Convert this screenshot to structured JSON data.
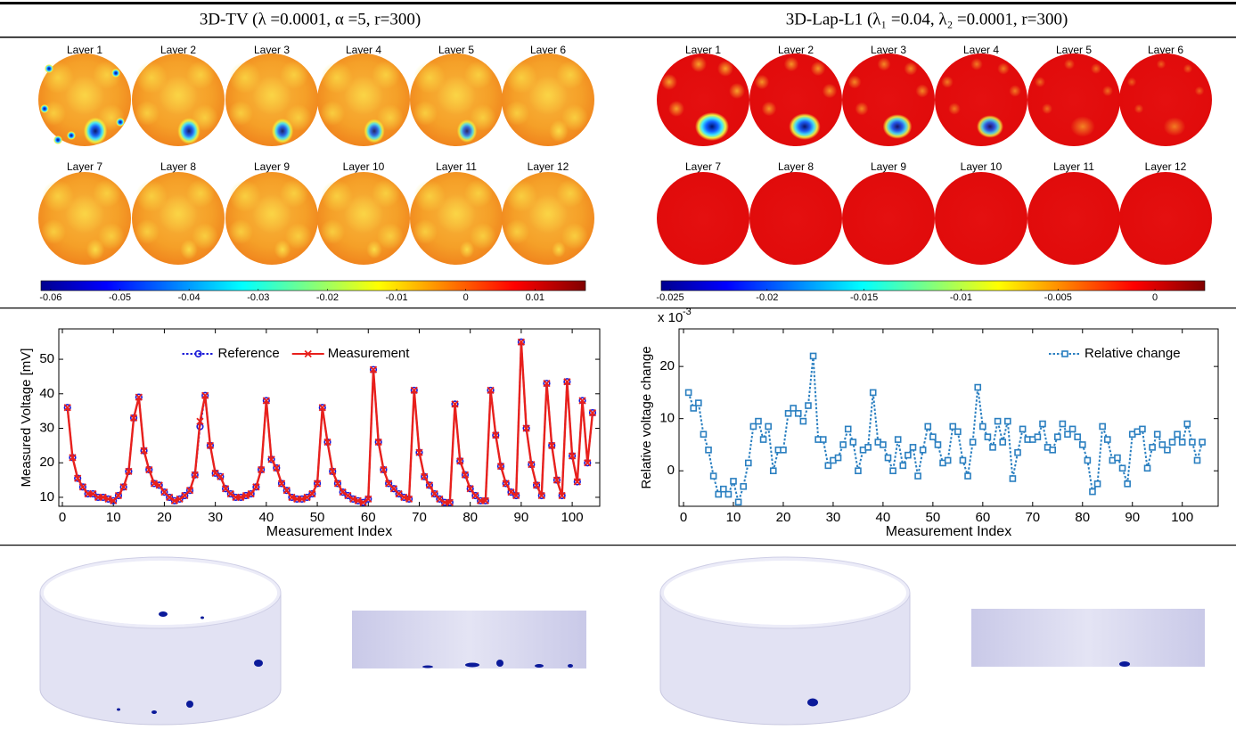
{
  "header": {
    "left": "3D-TV (λ =0.0001, α =5, r=300)",
    "right": "3D-Lap-L1 (λ₁ =0.04, λ₂ =0.0001, r=300)"
  },
  "layer_labels": [
    "Layer 1",
    "Layer 2",
    "Layer 3",
    "Layer 4",
    "Layer 5",
    "Layer 6",
    "Layer 7",
    "Layer 8",
    "Layer 9",
    "Layer 10",
    "Layer 11",
    "Layer 12"
  ],
  "colorbars": [
    {
      "xlim": [
        -0.0614,
        0.0173
      ],
      "ticks": [
        -0.06,
        -0.05,
        -0.04,
        -0.03,
        -0.02,
        -0.01,
        0,
        0.01
      ]
    },
    {
      "xlim": [
        -0.02546,
        0.00257
      ],
      "ticks": [
        -0.025,
        -0.02,
        -0.015,
        -0.01,
        -0.005,
        0
      ]
    }
  ],
  "chart_data": [
    {
      "type": "line",
      "xlabel": "Measurement Index",
      "ylabel": "Measured Voltage [mV]",
      "xlim": [
        -0.7,
        105.4
      ],
      "ylim": [
        7.4,
        58.8
      ],
      "xticks": [
        0,
        10,
        20,
        30,
        40,
        50,
        60,
        70,
        80,
        90,
        100
      ],
      "yticks": [
        10,
        20,
        30,
        40,
        50
      ],
      "legend": "upper center",
      "x": [
        1,
        2,
        3,
        4,
        5,
        6,
        7,
        8,
        9,
        10,
        11,
        12,
        13,
        14,
        15,
        16,
        17,
        18,
        19,
        20,
        21,
        22,
        23,
        24,
        25,
        26,
        27,
        28,
        29,
        30,
        31,
        32,
        33,
        34,
        35,
        36,
        37,
        38,
        39,
        40,
        41,
        42,
        43,
        44,
        45,
        46,
        47,
        48,
        49,
        50,
        51,
        52,
        53,
        54,
        55,
        56,
        57,
        58,
        59,
        60,
        61,
        62,
        63,
        64,
        65,
        66,
        67,
        68,
        69,
        70,
        71,
        72,
        73,
        74,
        75,
        76,
        77,
        78,
        79,
        80,
        81,
        82,
        83,
        84,
        85,
        86,
        87,
        88,
        89,
        90,
        91,
        92,
        93,
        94,
        95,
        96,
        97,
        98,
        99,
        100,
        101,
        102,
        103,
        104
      ],
      "series": [
        {
          "name": "Reference",
          "color": "#1c1cd8",
          "marker": "circle",
          "dashed": true,
          "values": [
            36,
            21.5,
            15.5,
            13,
            11,
            11,
            10,
            10,
            9.5,
            9,
            10.5,
            13,
            17.5,
            33,
            39,
            23.5,
            18,
            14,
            13.5,
            11.5,
            10,
            9,
            9.5,
            10.5,
            12,
            16.5,
            30.5,
            39.5,
            25,
            17,
            16,
            12.5,
            11,
            10,
            10,
            10.5,
            11,
            13,
            18,
            38,
            21,
            18.5,
            14,
            12,
            10,
            9.5,
            9.5,
            10,
            11,
            14,
            36,
            26,
            17.5,
            14,
            11.5,
            10.5,
            9.5,
            9,
            8.5,
            9.5,
            47,
            26,
            18,
            14,
            12.5,
            11,
            10,
            9.5,
            41,
            23,
            16,
            13.5,
            11,
            9.5,
            8.5,
            8.5,
            37,
            20.5,
            16.5,
            12.5,
            10.5,
            9,
            9,
            41,
            28,
            19,
            14,
            11.5,
            10.5,
            55,
            30,
            19.5,
            13.5,
            10.5,
            43,
            25,
            15,
            10.5,
            43.5,
            22,
            14.5,
            38,
            20,
            34.5
          ]
        },
        {
          "name": "Measurement",
          "color": "#e8201c",
          "marker": "x",
          "dashed": false,
          "values": [
            36,
            21.5,
            15.5,
            13,
            11,
            11,
            10,
            10,
            9.5,
            9,
            10.5,
            13,
            17.5,
            33,
            39,
            23.5,
            18,
            14,
            13.5,
            11.5,
            10,
            9,
            9.5,
            10.5,
            12,
            16.5,
            32,
            39.5,
            25,
            17,
            16,
            12.5,
            11,
            10,
            10,
            10.5,
            11,
            13,
            18,
            38,
            21,
            18.5,
            14,
            12,
            10,
            9.5,
            9.5,
            10,
            11,
            14,
            36,
            26,
            17.5,
            14,
            11.5,
            10.5,
            9.5,
            9,
            8.5,
            9.5,
            47,
            26,
            18,
            14,
            12.5,
            11,
            10,
            9.5,
            41,
            23,
            16,
            13.5,
            11,
            9.5,
            8.5,
            8.5,
            37,
            20.5,
            16.5,
            12.5,
            10.5,
            9,
            9,
            41,
            28,
            19,
            14,
            11.5,
            10.5,
            55,
            30,
            19.5,
            13.5,
            10.5,
            43,
            25,
            15,
            10.5,
            43.5,
            22,
            14.5,
            38,
            20,
            34.5
          ]
        }
      ]
    },
    {
      "type": "line",
      "xlabel": "Measurement Index",
      "ylabel": "Relative voltage change",
      "y_multiplier": "x 10",
      "y_multiplier_exponent": "-3",
      "xlim": [
        -0.9,
        107.2
      ],
      "ylim": [
        -6.8,
        27.2
      ],
      "xticks": [
        0,
        10,
        20,
        30,
        40,
        50,
        60,
        70,
        80,
        90,
        100
      ],
      "yticks": [
        0,
        10,
        20
      ],
      "legend": "upper right",
      "x": [
        1,
        2,
        3,
        4,
        5,
        6,
        7,
        8,
        9,
        10,
        11,
        12,
        13,
        14,
        15,
        16,
        17,
        18,
        19,
        20,
        21,
        22,
        23,
        24,
        25,
        26,
        27,
        28,
        29,
        30,
        31,
        32,
        33,
        34,
        35,
        36,
        37,
        38,
        39,
        40,
        41,
        42,
        43,
        44,
        45,
        46,
        47,
        48,
        49,
        50,
        51,
        52,
        53,
        54,
        55,
        56,
        57,
        58,
        59,
        60,
        61,
        62,
        63,
        64,
        65,
        66,
        67,
        68,
        69,
        70,
        71,
        72,
        73,
        74,
        75,
        76,
        77,
        78,
        79,
        80,
        81,
        82,
        83,
        84,
        85,
        86,
        87,
        88,
        89,
        90,
        91,
        92,
        93,
        94,
        95,
        96,
        97,
        98,
        99,
        100,
        101,
        102,
        103,
        104
      ],
      "series": [
        {
          "name": "Relative change",
          "color": "#2a7fc0",
          "marker": "square",
          "dashed": true,
          "values": [
            15,
            12,
            13,
            7,
            4,
            -1,
            -4.5,
            -3.5,
            -4.5,
            -2,
            -6,
            -3,
            1.5,
            8.5,
            9.5,
            6,
            8.5,
            0,
            4,
            4,
            11,
            12,
            11,
            9.5,
            12.5,
            22,
            6,
            6,
            1,
            2,
            2.5,
            5,
            8,
            5.5,
            0,
            4,
            4.5,
            15,
            5.5,
            5,
            2.5,
            0,
            6,
            1,
            3,
            4.5,
            -1,
            4,
            8.5,
            6.5,
            5,
            1.5,
            2,
            8.5,
            7.5,
            2,
            -1,
            5.5,
            16,
            8.5,
            6.5,
            4.5,
            9.5,
            5.5,
            9.5,
            -1.5,
            3.5,
            8,
            6,
            6,
            6.5,
            9,
            4.5,
            4,
            6.5,
            9,
            7,
            8,
            6.5,
            5,
            2,
            -4,
            -2.5,
            8.5,
            6,
            2,
            2.5,
            0.5,
            -2.5,
            7,
            7.5,
            8,
            0.5,
            4.5,
            7,
            5,
            4,
            5.5,
            7,
            5.5,
            9,
            5.5,
            2,
            5.5
          ]
        }
      ]
    }
  ]
}
